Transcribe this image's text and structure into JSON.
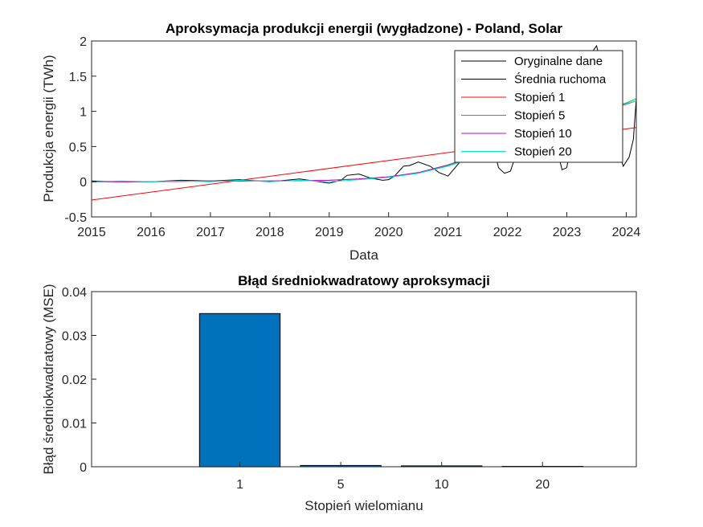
{
  "chart_data": [
    {
      "type": "line",
      "title": "Aproksymacja produkcji energii (wygładzone) - Poland, Solar",
      "xlabel": "Data",
      "ylabel": "Produkcja energii (TWh)",
      "xlim": [
        2015,
        2024.17
      ],
      "ylim": [
        -0.5,
        2
      ],
      "xticks": [
        "2015",
        "2016",
        "2017",
        "2018",
        "2019",
        "2020",
        "2021",
        "2022",
        "2023",
        "2024"
      ],
      "yticks": [
        "-0.5",
        "0",
        "0.5",
        "1",
        "1.5",
        "2"
      ],
      "legend_position": "top-right",
      "series": [
        {
          "name": "Oryginalne dane",
          "color": "#000000",
          "x": [
            2015.0,
            2015.5,
            2016.0,
            2016.5,
            2017.0,
            2017.5,
            2018.0,
            2018.5,
            2019.0,
            2019.2,
            2019.3,
            2019.5,
            2019.7,
            2019.9,
            2020.0,
            2020.1,
            2020.25,
            2020.35,
            2020.5,
            2020.7,
            2020.85,
            2021.0,
            2021.1,
            2021.2,
            2021.35,
            2021.5,
            2021.6,
            2021.75,
            2021.85,
            2021.95,
            2022.05,
            2022.15,
            2022.3,
            2022.45,
            2022.55,
            2022.7,
            2022.85,
            2022.92,
            2023.0,
            2023.08,
            2023.2,
            2023.35,
            2023.5,
            2023.6,
            2023.7,
            2023.85,
            2023.95,
            2024.05,
            2024.12,
            2024.17
          ],
          "y": [
            0.01,
            0.0,
            0.0,
            0.02,
            0.01,
            0.03,
            0.0,
            0.04,
            -0.02,
            0.02,
            0.09,
            0.11,
            0.05,
            0.02,
            0.03,
            0.08,
            0.22,
            0.23,
            0.28,
            0.22,
            0.13,
            0.08,
            0.18,
            0.28,
            0.55,
            1.0,
            0.95,
            0.55,
            0.2,
            0.12,
            0.15,
            0.4,
            1.0,
            1.5,
            1.55,
            1.0,
            0.4,
            0.17,
            0.2,
            0.6,
            1.45,
            1.75,
            1.93,
            1.6,
            1.0,
            0.5,
            0.22,
            0.35,
            0.6,
            1.18
          ]
        },
        {
          "name": "Średnia ruchoma",
          "color": "#000000",
          "x": [],
          "y": []
        },
        {
          "name": "Stopień 1",
          "color": "#ff0000",
          "x": [
            2015.0,
            2024.17
          ],
          "y": [
            -0.26,
            0.77
          ]
        },
        {
          "name": "Stopień 5",
          "color": "#00cc00",
          "x": [
            2015.0,
            2016.0,
            2017.0,
            2018.0,
            2019.0,
            2019.5,
            2020.0,
            2020.5,
            2021.0,
            2021.5,
            2022.0,
            2022.5,
            2023.0,
            2023.5,
            2024.0,
            2024.17
          ],
          "y": [
            0.0,
            0.0,
            0.01,
            0.01,
            0.02,
            0.04,
            0.07,
            0.13,
            0.23,
            0.37,
            0.53,
            0.7,
            0.86,
            1.0,
            1.12,
            1.18
          ]
        },
        {
          "name": "Stopień 10",
          "color": "#cc00cc",
          "x": [
            2015.0,
            2016.0,
            2017.0,
            2018.0,
            2019.0,
            2019.5,
            2020.0,
            2020.5,
            2021.0,
            2021.5,
            2022.0,
            2022.5,
            2023.0,
            2023.5,
            2024.0,
            2024.17
          ],
          "y": [
            0.0,
            0.0,
            0.01,
            0.01,
            0.02,
            0.04,
            0.07,
            0.13,
            0.24,
            0.38,
            0.55,
            0.72,
            0.87,
            1.0,
            1.1,
            1.15
          ]
        },
        {
          "name": "Stopień 20",
          "color": "#00e5e5",
          "x": [
            2015.0,
            2015.5,
            2016.0,
            2016.5,
            2017.0,
            2017.5,
            2018.0,
            2018.5,
            2019.0,
            2019.5,
            2020.0,
            2020.5,
            2021.0,
            2021.5,
            2022.0,
            2022.5,
            2023.0,
            2023.5,
            2024.0,
            2024.17
          ],
          "y": [
            0.0,
            0.01,
            0.0,
            0.01,
            0.0,
            0.02,
            0.0,
            0.02,
            0.0,
            0.03,
            0.06,
            0.12,
            0.22,
            0.36,
            0.54,
            0.71,
            0.88,
            1.01,
            1.11,
            1.15
          ]
        }
      ]
    },
    {
      "type": "bar",
      "title": "Błąd średniokwadratowy aproksymacji",
      "xlabel": "Stopień wielomianu",
      "ylabel": "Błąd średniokwadratowy (MSE)",
      "categories": [
        "1",
        "5",
        "10",
        "20"
      ],
      "values": [
        0.035,
        0.0003,
        0.0002,
        0.0001
      ],
      "ylim": [
        0,
        0.04
      ],
      "yticks": [
        "0",
        "0.01",
        "0.02",
        "0.03",
        "0.04"
      ],
      "bar_color": "#0072bd"
    }
  ]
}
